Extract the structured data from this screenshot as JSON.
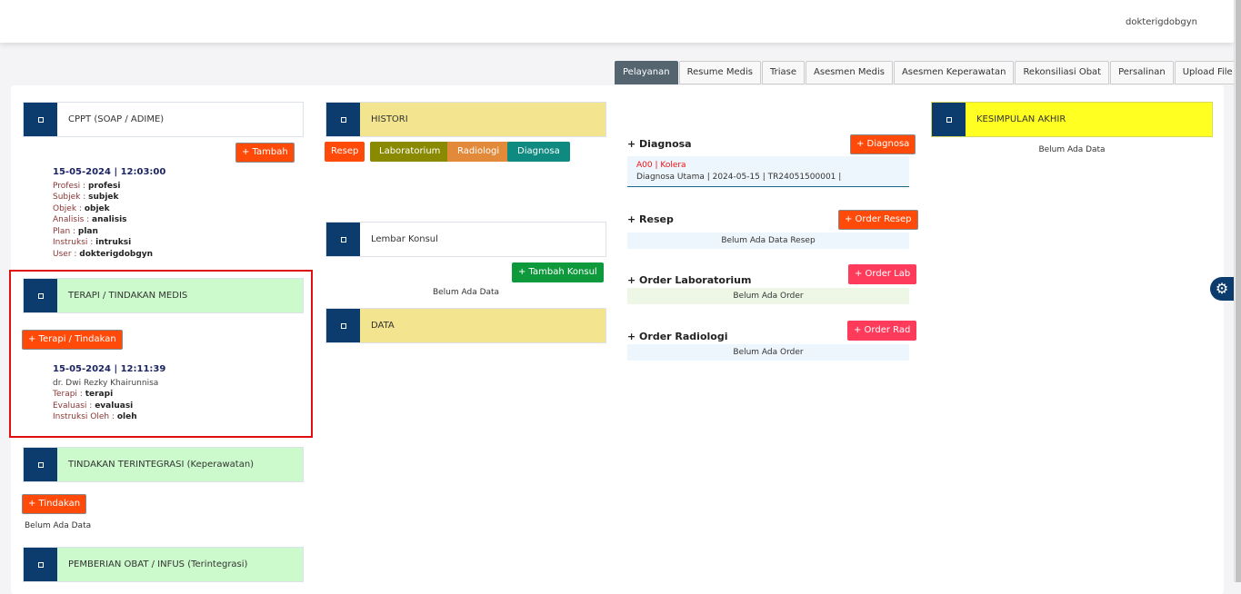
{
  "header": {
    "username": "dokterigdobgyn"
  },
  "tabs": [
    "Pelayanan",
    "Resume Medis",
    "Triase",
    "Asesmen Medis",
    "Asesmen Keperawatan",
    "Rekonsiliasi Obat",
    "Persalinan",
    "Upload File"
  ],
  "cppt": {
    "title": "CPPT (SOAP / ADIME)",
    "add": "+ Tambah",
    "datetime": "15-05-2024 | 12:03:00",
    "fields": [
      {
        "l": "Profesi : ",
        "v": "profesi"
      },
      {
        "l": "Subjek : ",
        "v": "subjek"
      },
      {
        "l": "Objek : ",
        "v": "objek"
      },
      {
        "l": "Analisis : ",
        "v": "analisis"
      },
      {
        "l": "Plan : ",
        "v": "plan"
      },
      {
        "l": "Instruksi : ",
        "v": "intruksi"
      },
      {
        "l": "User : ",
        "v": "dokterigdobgyn"
      }
    ]
  },
  "terapi": {
    "title": "TERAPI / TINDAKAN MEDIS",
    "add": "+ Terapi / Tindakan",
    "datetime": "15-05-2024 | 12:11:39",
    "doctor": "dr. Dwi Rezky Khairunnisa",
    "fields": [
      {
        "l": "Terapi : ",
        "v": "terapi"
      },
      {
        "l": "Evaluasi : ",
        "v": "evaluasi"
      },
      {
        "l": "Instruksi Oleh : ",
        "v": "oleh"
      }
    ]
  },
  "tindakan": {
    "title": "TINDAKAN TERINTEGRASI (Keperawatan)",
    "add": "+ Tindakan",
    "empty": "Belum Ada Data"
  },
  "obat": {
    "title": "PEMBERIAN OBAT / INFUS (Terintegrasi)"
  },
  "histori": {
    "title": "HISTORI",
    "buttons": [
      "Resep",
      "Laboratorium",
      "Radiologi",
      "Diagnosa"
    ]
  },
  "konsul": {
    "title": "Lembar Konsul",
    "add": "+ Tambah Konsul",
    "empty": "Belum Ada Data"
  },
  "data": {
    "title": "DATA"
  },
  "diagnosa": {
    "title": "+ Diagnosa",
    "add": "+ Diagnosa",
    "code": "A00 | Kolera",
    "detail": "Diagnosa Utama | 2024-05-15 | TR24051500001 |"
  },
  "resep": {
    "title": "+ Resep",
    "add": "+ Order Resep",
    "empty": "Belum Ada Data Resep"
  },
  "lab": {
    "title": "+ Order Laboratorium",
    "add": "+ Order Lab",
    "empty": "Belum Ada Order"
  },
  "rad": {
    "title": "+ Order Radiologi",
    "add": "+ Order Rad",
    "empty": "Belum Ada Order"
  },
  "kesimpulan": {
    "title": "KESIMPULAN AKHIR",
    "empty": "Belum Ada Data"
  },
  "icons": {
    "settings": "gear-icon"
  }
}
